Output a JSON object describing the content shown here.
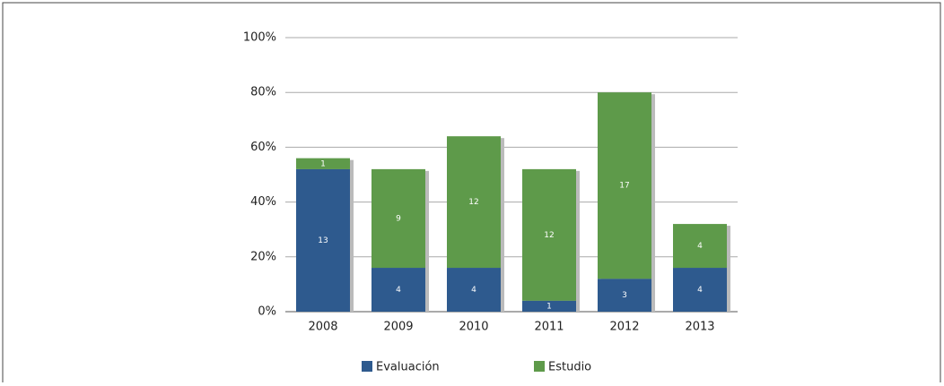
{
  "chart_data": {
    "type": "stacked_bar",
    "categories": [
      "2008",
      "2009",
      "2010",
      "2011",
      "2012",
      "2013"
    ],
    "series": [
      {
        "name": "Evaluación",
        "color": "#2e5a8e",
        "values": [
          13,
          4,
          4,
          1,
          3,
          4
        ]
      },
      {
        "name": "Estudio",
        "color": "#5e9a4a",
        "values": [
          1,
          9,
          12,
          12,
          17,
          4
        ]
      }
    ],
    "ylim": [
      0,
      25
    ],
    "yticks": [
      {
        "value": 0,
        "label": "0%"
      },
      {
        "value": 5,
        "label": "20%"
      },
      {
        "value": 10,
        "label": "40%"
      },
      {
        "value": 15,
        "label": "60%"
      },
      {
        "value": 20,
        "label": "80%"
      },
      {
        "value": 25,
        "label": "100%"
      }
    ],
    "grid": true,
    "legend": "bottom"
  }
}
